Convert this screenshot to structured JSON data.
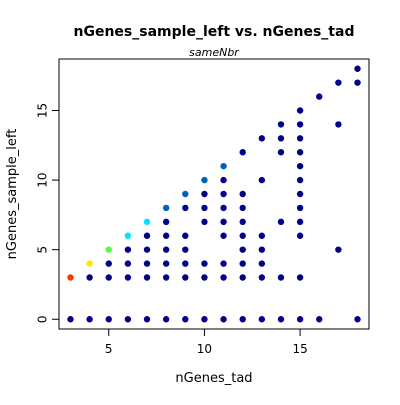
{
  "chart_data": {
    "type": "scatter",
    "title": "nGenes_sample_left vs. nGenes_tad",
    "subtitle": "sameNbr",
    "xlabel": "nGenes_tad",
    "ylabel": "nGenes_sample_left",
    "xlim": [
      2.4,
      18.6
    ],
    "ylim": [
      -0.7,
      18.7
    ],
    "x_ticks": [
      5,
      10,
      15
    ],
    "y_ticks": [
      0,
      5,
      10,
      15
    ],
    "grid": false,
    "legend": "none",
    "colors": {
      "default_point": "#00008B",
      "density_mid": "#0060C0",
      "cyan": "#00E5FF",
      "green": "#4CFF4C",
      "yellow": "#FFE600",
      "red": "#FF3300"
    },
    "points": [
      {
        "x": 3,
        "y": 0,
        "color": "#00008B"
      },
      {
        "x": 4,
        "y": 0,
        "color": "#00008B"
      },
      {
        "x": 5,
        "y": 0,
        "color": "#00008B"
      },
      {
        "x": 6,
        "y": 0,
        "color": "#00008B"
      },
      {
        "x": 7,
        "y": 0,
        "color": "#00008B"
      },
      {
        "x": 8,
        "y": 0,
        "color": "#00008B"
      },
      {
        "x": 9,
        "y": 0,
        "color": "#00008B"
      },
      {
        "x": 10,
        "y": 0,
        "color": "#00008B"
      },
      {
        "x": 11,
        "y": 0,
        "color": "#00008B"
      },
      {
        "x": 12,
        "y": 0,
        "color": "#00008B"
      },
      {
        "x": 13,
        "y": 0,
        "color": "#00008B"
      },
      {
        "x": 14,
        "y": 0,
        "color": "#00008B"
      },
      {
        "x": 15,
        "y": 0,
        "color": "#00008B"
      },
      {
        "x": 16,
        "y": 0,
        "color": "#00008B"
      },
      {
        "x": 18,
        "y": 0,
        "color": "#00008B"
      },
      {
        "x": 3,
        "y": 3,
        "color": "#FF3300"
      },
      {
        "x": 4,
        "y": 3,
        "color": "#00008B"
      },
      {
        "x": 5,
        "y": 3,
        "color": "#00008B"
      },
      {
        "x": 6,
        "y": 3,
        "color": "#00008B"
      },
      {
        "x": 7,
        "y": 3,
        "color": "#00008B"
      },
      {
        "x": 8,
        "y": 3,
        "color": "#00008B"
      },
      {
        "x": 9,
        "y": 3,
        "color": "#00008B"
      },
      {
        "x": 10,
        "y": 3,
        "color": "#00008B"
      },
      {
        "x": 11,
        "y": 3,
        "color": "#00008B"
      },
      {
        "x": 12,
        "y": 3,
        "color": "#00008B"
      },
      {
        "x": 13,
        "y": 3,
        "color": "#00008B"
      },
      {
        "x": 14,
        "y": 3,
        "color": "#00008B"
      },
      {
        "x": 15,
        "y": 3,
        "color": "#00008B"
      },
      {
        "x": 4,
        "y": 4,
        "color": "#FFE600"
      },
      {
        "x": 5,
        "y": 4,
        "color": "#00008B"
      },
      {
        "x": 6,
        "y": 4,
        "color": "#00008B"
      },
      {
        "x": 7,
        "y": 4,
        "color": "#00008B"
      },
      {
        "x": 8,
        "y": 4,
        "color": "#00008B"
      },
      {
        "x": 9,
        "y": 4,
        "color": "#00008B"
      },
      {
        "x": 10,
        "y": 4,
        "color": "#00008B"
      },
      {
        "x": 11,
        "y": 4,
        "color": "#00008B"
      },
      {
        "x": 12,
        "y": 4,
        "color": "#00008B"
      },
      {
        "x": 13,
        "y": 4,
        "color": "#00008B"
      },
      {
        "x": 5,
        "y": 5,
        "color": "#4CFF4C"
      },
      {
        "x": 6,
        "y": 5,
        "color": "#00008B"
      },
      {
        "x": 7,
        "y": 5,
        "color": "#00008B"
      },
      {
        "x": 8,
        "y": 5,
        "color": "#00008B"
      },
      {
        "x": 9,
        "y": 5,
        "color": "#00008B"
      },
      {
        "x": 12,
        "y": 5,
        "color": "#00008B"
      },
      {
        "x": 13,
        "y": 5,
        "color": "#00008B"
      },
      {
        "x": 17,
        "y": 5,
        "color": "#00008B"
      },
      {
        "x": 6,
        "y": 6,
        "color": "#00E5FF"
      },
      {
        "x": 7,
        "y": 6,
        "color": "#00008B"
      },
      {
        "x": 8,
        "y": 6,
        "color": "#00008B"
      },
      {
        "x": 9,
        "y": 6,
        "color": "#00008B"
      },
      {
        "x": 11,
        "y": 6,
        "color": "#00008B"
      },
      {
        "x": 12,
        "y": 6,
        "color": "#00008B"
      },
      {
        "x": 13,
        "y": 6,
        "color": "#00008B"
      },
      {
        "x": 15,
        "y": 6,
        "color": "#00008B"
      },
      {
        "x": 7,
        "y": 7,
        "color": "#00E5FF"
      },
      {
        "x": 8,
        "y": 7,
        "color": "#00008B"
      },
      {
        "x": 10,
        "y": 7,
        "color": "#00008B"
      },
      {
        "x": 11,
        "y": 7,
        "color": "#00008B"
      },
      {
        "x": 12,
        "y": 7,
        "color": "#00008B"
      },
      {
        "x": 14,
        "y": 7,
        "color": "#00008B"
      },
      {
        "x": 15,
        "y": 7,
        "color": "#00008B"
      },
      {
        "x": 8,
        "y": 8,
        "color": "#0060C0"
      },
      {
        "x": 9,
        "y": 8,
        "color": "#00008B"
      },
      {
        "x": 10,
        "y": 8,
        "color": "#00008B"
      },
      {
        "x": 11,
        "y": 8,
        "color": "#00008B"
      },
      {
        "x": 12,
        "y": 8,
        "color": "#00008B"
      },
      {
        "x": 15,
        "y": 8,
        "color": "#00008B"
      },
      {
        "x": 9,
        "y": 9,
        "color": "#0060C0"
      },
      {
        "x": 10,
        "y": 9,
        "color": "#00008B"
      },
      {
        "x": 11,
        "y": 9,
        "color": "#00008B"
      },
      {
        "x": 12,
        "y": 9,
        "color": "#00008B"
      },
      {
        "x": 15,
        "y": 9,
        "color": "#00008B"
      },
      {
        "x": 10,
        "y": 10,
        "color": "#0060C0"
      },
      {
        "x": 11,
        "y": 10,
        "color": "#00008B"
      },
      {
        "x": 13,
        "y": 10,
        "color": "#00008B"
      },
      {
        "x": 15,
        "y": 10,
        "color": "#00008B"
      },
      {
        "x": 11,
        "y": 11,
        "color": "#0060C0"
      },
      {
        "x": 15,
        "y": 11,
        "color": "#00008B"
      },
      {
        "x": 12,
        "y": 12,
        "color": "#00008B"
      },
      {
        "x": 14,
        "y": 12,
        "color": "#00008B"
      },
      {
        "x": 15,
        "y": 12,
        "color": "#00008B"
      },
      {
        "x": 13,
        "y": 13,
        "color": "#00008B"
      },
      {
        "x": 14,
        "y": 13,
        "color": "#00008B"
      },
      {
        "x": 15,
        "y": 13,
        "color": "#00008B"
      },
      {
        "x": 14,
        "y": 14,
        "color": "#00008B"
      },
      {
        "x": 15,
        "y": 14,
        "color": "#00008B"
      },
      {
        "x": 17,
        "y": 14,
        "color": "#00008B"
      },
      {
        "x": 15,
        "y": 15,
        "color": "#00008B"
      },
      {
        "x": 16,
        "y": 16,
        "color": "#00008B"
      },
      {
        "x": 17,
        "y": 17,
        "color": "#00008B"
      },
      {
        "x": 18,
        "y": 17,
        "color": "#00008B"
      },
      {
        "x": 18,
        "y": 18,
        "color": "#00008B"
      }
    ]
  }
}
